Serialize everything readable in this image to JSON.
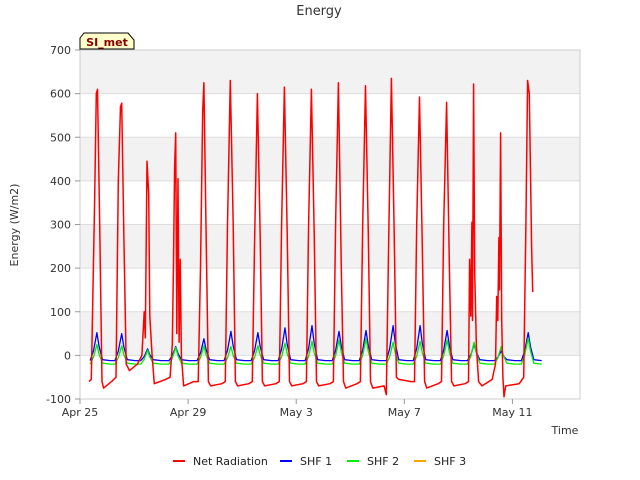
{
  "chart_data": {
    "type": "line",
    "title": "Energy",
    "xlabel": "Time",
    "ylabel": "Energy (W/m2)",
    "site_label": "SI_met",
    "ylim": [
      -100,
      700
    ],
    "yticks": [
      -100,
      0,
      100,
      200,
      300,
      400,
      500,
      600,
      700
    ],
    "x_range": [
      "2024-04-25",
      "2024-05-13"
    ],
    "xticks": [
      {
        "date": "2024-04-25",
        "label": "Apr 25"
      },
      {
        "date": "2024-04-29",
        "label": "Apr 29"
      },
      {
        "date": "2024-05-03",
        "label": "May 3"
      },
      {
        "date": "2024-05-07",
        "label": "May 7"
      },
      {
        "date": "2024-05-11",
        "label": "May 11"
      }
    ],
    "grid": true,
    "background_bands": true,
    "legend_position": "bottom",
    "x_date_format": "MM-DD HH:mm",
    "series": [
      {
        "name": "Net Radiation",
        "color": "#ff0000",
        "points": [
          [
            "04-25 08:00",
            -60
          ],
          [
            "04-25 10:00",
            -55
          ],
          [
            "04-25 13:00",
            350
          ],
          [
            "04-25 14:30",
            600
          ],
          [
            "04-25 15:30",
            610
          ],
          [
            "04-25 17:30",
            300
          ],
          [
            "04-25 19:30",
            -60
          ],
          [
            "04-25 21:00",
            -75
          ],
          [
            "04-26 04:00",
            -60
          ],
          [
            "04-26 08:00",
            -50
          ],
          [
            "04-26 10:00",
            400
          ],
          [
            "04-26 12:00",
            570
          ],
          [
            "04-26 13:00",
            578
          ],
          [
            "04-26 15:00",
            270
          ],
          [
            "04-26 17:00",
            -20
          ],
          [
            "04-26 20:00",
            -35
          ],
          [
            "04-27 03:00",
            -20
          ],
          [
            "04-27 07:00",
            0
          ],
          [
            "04-27 09:00",
            100
          ],
          [
            "04-27 10:00",
            40
          ],
          [
            "04-27 11:30",
            445
          ],
          [
            "04-27 13:00",
            370
          ],
          [
            "04-27 14:00",
            90
          ],
          [
            "04-27 16:00",
            0
          ],
          [
            "04-27 18:00",
            -65
          ],
          [
            "04-28 04:00",
            -55
          ],
          [
            "04-28 08:00",
            -50
          ],
          [
            "04-28 10:00",
            25
          ],
          [
            "04-28 11:00",
            210
          ],
          [
            "04-28 12:00",
            430
          ],
          [
            "04-28 13:00",
            510
          ],
          [
            "04-28 14:00",
            50
          ],
          [
            "04-28 15:00",
            405
          ],
          [
            "04-28 16:00",
            30
          ],
          [
            "04-28 17:00",
            220
          ],
          [
            "04-28 18:00",
            0
          ],
          [
            "04-28 20:00",
            -70
          ],
          [
            "04-29 05:00",
            -60
          ],
          [
            "04-29 09:00",
            -60
          ],
          [
            "04-29 11:00",
            200
          ],
          [
            "04-29 13:00",
            560
          ],
          [
            "04-29 14:00",
            625
          ],
          [
            "04-29 16:00",
            280
          ],
          [
            "04-29 18:00",
            -60
          ],
          [
            "04-29 20:00",
            -70
          ],
          [
            "04-30 06:00",
            -65
          ],
          [
            "04-30 09:00",
            -60
          ],
          [
            "04-30 11:00",
            300
          ],
          [
            "04-30 13:30",
            630
          ],
          [
            "04-30 16:00",
            300
          ],
          [
            "04-30 18:00",
            -60
          ],
          [
            "04-30 20:00",
            -70
          ],
          [
            "05-01 06:00",
            -65
          ],
          [
            "05-01 09:00",
            -60
          ],
          [
            "05-01 11:00",
            250
          ],
          [
            "05-01 13:30",
            600
          ],
          [
            "05-01 16:00",
            270
          ],
          [
            "05-01 18:00",
            -60
          ],
          [
            "05-01 20:00",
            -70
          ],
          [
            "05-02 06:00",
            -65
          ],
          [
            "05-02 09:00",
            -60
          ],
          [
            "05-02 11:00",
            300
          ],
          [
            "05-02 13:30",
            615
          ],
          [
            "05-02 16:00",
            280
          ],
          [
            "05-02 18:00",
            -60
          ],
          [
            "05-02 20:00",
            -70
          ],
          [
            "05-03 06:00",
            -65
          ],
          [
            "05-03 09:00",
            -60
          ],
          [
            "05-03 11:00",
            300
          ],
          [
            "05-03 13:30",
            610
          ],
          [
            "05-03 16:00",
            280
          ],
          [
            "05-03 18:00",
            -60
          ],
          [
            "05-03 20:00",
            -70
          ],
          [
            "05-04 06:00",
            -65
          ],
          [
            "05-04 09:00",
            -60
          ],
          [
            "05-04 11:00",
            300
          ],
          [
            "05-04 13:30",
            625
          ],
          [
            "05-04 16:00",
            200
          ],
          [
            "05-04 18:00",
            -60
          ],
          [
            "05-04 20:00",
            -75
          ],
          [
            "05-05 06:00",
            -65
          ],
          [
            "05-05 09:00",
            -60
          ],
          [
            "05-05 11:00",
            300
          ],
          [
            "05-05 13:30",
            618
          ],
          [
            "05-05 16:00",
            280
          ],
          [
            "05-05 18:00",
            -60
          ],
          [
            "05-05 20:00",
            -75
          ],
          [
            "05-06 06:00",
            -70
          ],
          [
            "05-06 08:00",
            -90
          ],
          [
            "05-06 10:00",
            250
          ],
          [
            "05-06 12:30",
            635
          ],
          [
            "05-06 15:00",
            280
          ],
          [
            "05-06 17:00",
            -50
          ],
          [
            "05-06 19:00",
            -55
          ],
          [
            "05-07 06:00",
            -60
          ],
          [
            "05-07 09:00",
            -60
          ],
          [
            "05-07 11:00",
            300
          ],
          [
            "05-07 13:30",
            592
          ],
          [
            "05-07 16:00",
            250
          ],
          [
            "05-07 18:00",
            -60
          ],
          [
            "05-07 20:00",
            -75
          ],
          [
            "05-08 06:00",
            -65
          ],
          [
            "05-08 09:00",
            -60
          ],
          [
            "05-08 11:00",
            300
          ],
          [
            "05-08 13:30",
            580
          ],
          [
            "05-08 16:00",
            200
          ],
          [
            "05-08 18:00",
            -60
          ],
          [
            "05-08 20:00",
            -70
          ],
          [
            "05-09 06:00",
            -65
          ],
          [
            "05-09 09:00",
            -60
          ],
          [
            "05-09 10:00",
            220
          ],
          [
            "05-09 11:00",
            90
          ],
          [
            "05-09 12:00",
            305
          ],
          [
            "05-09 12:30",
            80
          ],
          [
            "05-09 13:30",
            622
          ],
          [
            "05-09 14:30",
            190
          ],
          [
            "05-09 16:00",
            20
          ],
          [
            "05-09 18:00",
            -60
          ],
          [
            "05-09 21:00",
            -70
          ],
          [
            "05-10 06:00",
            -55
          ],
          [
            "05-10 09:00",
            -20
          ],
          [
            "05-10 10:00",
            135
          ],
          [
            "05-10 11:00",
            80
          ],
          [
            "05-10 12:00",
            270
          ],
          [
            "05-10 12:30",
            150
          ],
          [
            "05-10 13:30",
            510
          ],
          [
            "05-10 14:30",
            80
          ],
          [
            "05-10 15:30",
            -50
          ],
          [
            "05-10 16:30",
            -95
          ],
          [
            "05-10 18:00",
            -70
          ],
          [
            "05-11 06:00",
            -65
          ],
          [
            "05-11 10:00",
            -50
          ],
          [
            "05-11 12:00",
            300
          ],
          [
            "05-11 13:30",
            630
          ],
          [
            "05-11 15:00",
            600
          ],
          [
            "05-11 17:00",
            250
          ],
          [
            "05-11 18:00",
            145
          ]
        ]
      },
      {
        "name": "SHF 1",
        "color": "#0000ff",
        "peaks": [
          [
            "04-25 15:00",
            52
          ],
          [
            "04-26 13:00",
            50
          ],
          [
            "04-27 12:00",
            15
          ],
          [
            "04-28 13:00",
            20
          ],
          [
            "04-29 14:00",
            38
          ],
          [
            "04-30 14:00",
            55
          ],
          [
            "05-01 14:00",
            52
          ],
          [
            "05-02 14:00",
            63
          ],
          [
            "05-03 14:00",
            68
          ],
          [
            "05-04 14:00",
            55
          ],
          [
            "05-05 14:00",
            57
          ],
          [
            "05-06 14:00",
            68
          ],
          [
            "05-07 14:00",
            68
          ],
          [
            "05-08 14:00",
            57
          ],
          [
            "05-09 14:00",
            25
          ],
          [
            "05-10 14:00",
            10
          ],
          [
            "05-11 14:00",
            52
          ]
        ],
        "trough": -12
      },
      {
        "name": "SHF 2",
        "color": "#00ee00",
        "peaks": [
          [
            "04-25 15:00",
            25
          ],
          [
            "04-26 13:00",
            22
          ],
          [
            "04-27 12:00",
            12
          ],
          [
            "04-28 13:00",
            18
          ],
          [
            "04-29 14:00",
            22
          ],
          [
            "04-30 14:00",
            20
          ],
          [
            "05-01 14:00",
            22
          ],
          [
            "05-02 14:00",
            28
          ],
          [
            "05-03 14:00",
            32
          ],
          [
            "05-04 14:00",
            35
          ],
          [
            "05-05 14:00",
            38
          ],
          [
            "05-06 14:00",
            30
          ],
          [
            "05-07 14:00",
            32
          ],
          [
            "05-08 14:00",
            35
          ],
          [
            "05-09 14:00",
            30
          ],
          [
            "05-10 14:00",
            20
          ],
          [
            "05-11 14:00",
            40
          ]
        ],
        "trough": -20
      },
      {
        "name": "SHF 3",
        "color": "#ffa500",
        "peaks": [],
        "trough": 0
      }
    ]
  }
}
